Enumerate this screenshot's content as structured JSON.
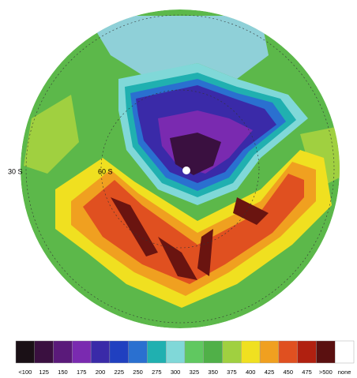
{
  "map": {
    "labels": [
      "30 S",
      "60 S"
    ]
  },
  "legend": {
    "items": [
      {
        "label": "<100",
        "color": "#1a1016"
      },
      {
        "label": "125",
        "color": "#3a1040"
      },
      {
        "label": "150",
        "color": "#5a1a7a"
      },
      {
        "label": "175",
        "color": "#7a2ab0"
      },
      {
        "label": "200",
        "color": "#3a2aa8"
      },
      {
        "label": "225",
        "color": "#2040c0"
      },
      {
        "label": "250",
        "color": "#2a70d0"
      },
      {
        "label": "275",
        "color": "#20b0b0"
      },
      {
        "label": "300",
        "color": "#80d8d8"
      },
      {
        "label": "325",
        "color": "#60c860"
      },
      {
        "label": "350",
        "color": "#50b048"
      },
      {
        "label": "375",
        "color": "#a0d040"
      },
      {
        "label": "400",
        "color": "#f0e020"
      },
      {
        "label": "425",
        "color": "#f0a020"
      },
      {
        "label": "450",
        "color": "#e05020"
      },
      {
        "label": "475",
        "color": "#b02010"
      },
      {
        "label": ">500",
        "color": "#5a1010"
      },
      {
        "label": "none",
        "color": "#ffffff"
      }
    ]
  }
}
